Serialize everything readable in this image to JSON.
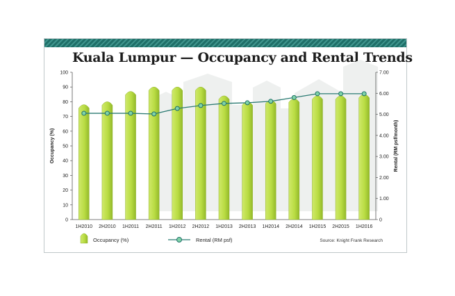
{
  "chart_data": {
    "type": "bar",
    "title": "Kuala Lumpur — Occupancy and Rental Trends",
    "categories": [
      "1H2010",
      "2H2010",
      "1H2011",
      "2H2011",
      "1H2012",
      "2H2012",
      "1H2013",
      "2H2013",
      "1H2014",
      "2H2014",
      "1H2015",
      "2H2015",
      "1H2016"
    ],
    "series": [
      {
        "name": "Occupancy (%)",
        "type": "bar",
        "axis": "left",
        "color": "#bfe04a",
        "values": [
          78,
          80,
          87,
          90,
          90,
          90,
          84,
          80,
          81,
          82,
          84,
          84,
          85
        ]
      },
      {
        "name": "Rental (RM psf)",
        "type": "line",
        "axis": "right",
        "color": "#2a7a72",
        "values": [
          5.05,
          5.05,
          5.05,
          5.02,
          5.28,
          5.42,
          5.52,
          5.55,
          5.62,
          5.8,
          5.98,
          5.98,
          5.98
        ]
      }
    ],
    "ylabel_left": "Occupancy (%)",
    "ylabel_right": "Rental (RM psf/month)",
    "ylim_left": [
      0,
      100
    ],
    "ylim_right": [
      0,
      7
    ],
    "yticks_left": [
      "0",
      "10",
      "20",
      "30",
      "40",
      "50",
      "60",
      "70",
      "80",
      "90",
      "100"
    ],
    "yticks_right": [
      "0",
      "1.00",
      "2.00",
      "3.00",
      "4.00",
      "5.00",
      "6.00",
      "7.00"
    ],
    "legend": [
      "Occupancy (%)",
      "Rental (RM psf)"
    ],
    "legend_placement": "bottom",
    "grid": false,
    "source": "Source: Knight Frank Research"
  }
}
